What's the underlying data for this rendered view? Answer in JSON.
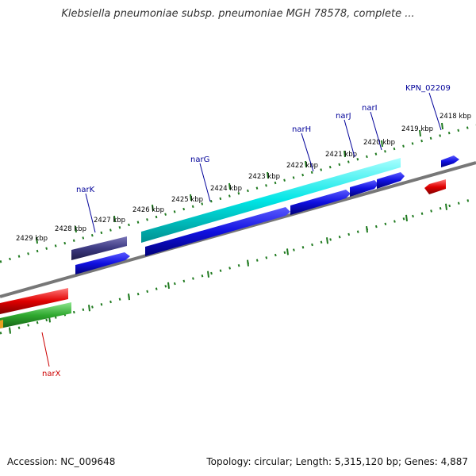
{
  "title": "Klebsiella pneumoniae subsp. pneumoniae MGH 78578, complete ...",
  "footer": {
    "accession": "Accession: NC_009648",
    "summary": "Topology: circular; Length: 5,315,120 bp; Genes: 4,887"
  },
  "colors": {
    "backbone": "#808080",
    "ruler": "#1f7a1f",
    "label_blue": "#000099",
    "label_red": "#cc0000",
    "cds_blue": "#1010e0",
    "cyan": "#00e5e5",
    "purple": "#3d3a82",
    "red": "#e00000",
    "green": "#2ea82e",
    "orange": "#e8a020"
  },
  "ruler_ticks": [
    "2418 kbp",
    "2419 kbp",
    "2420 kbp",
    "2421 kbp",
    "2422 kbp",
    "2423 kbp",
    "2424 kbp",
    "2425 kbp",
    "2426 kbp",
    "2427 kbp",
    "2428 kbp",
    "2429 kbp"
  ],
  "gene_labels": [
    {
      "name": "KPN_02209",
      "color": "blue"
    },
    {
      "name": "narI",
      "color": "blue"
    },
    {
      "name": "narJ",
      "color": "blue"
    },
    {
      "name": "narH",
      "color": "blue"
    },
    {
      "name": "narG",
      "color": "blue"
    },
    {
      "name": "narK",
      "color": "blue"
    },
    {
      "name": "narX",
      "color": "red"
    }
  ]
}
